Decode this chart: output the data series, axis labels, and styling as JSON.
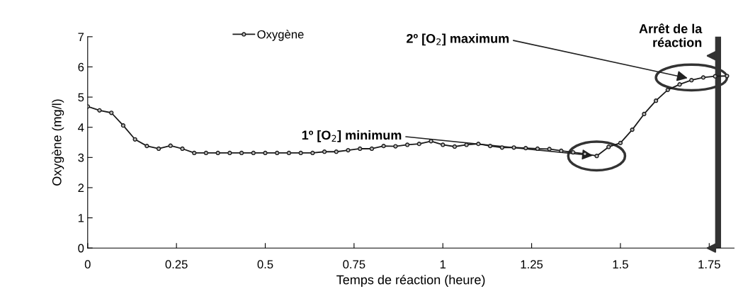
{
  "chart_data": {
    "type": "line",
    "xlabel": "Temps de réaction (heure)",
    "ylabel": "Oxygène (mg/l)",
    "x": [
      0,
      0.0333,
      0.0667,
      0.1,
      0.1333,
      0.1667,
      0.2,
      0.2333,
      0.2667,
      0.3,
      0.3333,
      0.3667,
      0.4,
      0.4333,
      0.4667,
      0.5,
      0.5333,
      0.5667,
      0.6,
      0.6333,
      0.6667,
      0.7,
      0.7333,
      0.7667,
      0.8,
      0.8333,
      0.8667,
      0.9,
      0.9333,
      0.9667,
      1,
      1.0333,
      1.0667,
      1.1,
      1.1333,
      1.1667,
      1.2,
      1.2333,
      1.2667,
      1.3,
      1.3333,
      1.3667,
      1.4,
      1.4333,
      1.4667,
      1.5,
      1.5333,
      1.5667,
      1.6,
      1.6333,
      1.6667,
      1.7,
      1.7333,
      1.7667,
      1.8
    ],
    "series": [
      {
        "name": "Oxygène",
        "color": "#1a1a1a",
        "values": [
          4.69,
          4.56,
          4.48,
          4.06,
          3.6,
          3.38,
          3.29,
          3.39,
          3.29,
          3.15,
          3.15,
          3.15,
          3.15,
          3.15,
          3.15,
          3.15,
          3.15,
          3.15,
          3.15,
          3.15,
          3.19,
          3.19,
          3.24,
          3.29,
          3.29,
          3.38,
          3.37,
          3.42,
          3.45,
          3.54,
          3.42,
          3.36,
          3.42,
          3.45,
          3.38,
          3.33,
          3.33,
          3.31,
          3.29,
          3.28,
          3.22,
          3.17,
          3.12,
          3.05,
          3.35,
          3.48,
          3.92,
          4.44,
          4.88,
          5.24,
          5.42,
          5.56,
          5.65,
          5.69,
          5.7
        ]
      }
    ],
    "xlim": [
      0,
      1.82
    ],
    "ylim": [
      0,
      7
    ],
    "xticks": [
      0,
      0.25,
      0.5,
      0.75,
      1,
      1.25,
      1.5,
      1.75
    ],
    "yticks": [
      0,
      1,
      2,
      3,
      4,
      5,
      6,
      7
    ],
    "grid": false,
    "legend": "top",
    "marker": "circle",
    "line_style": "solid",
    "ref_lines": [
      {
        "axis": "x",
        "value": 1.775,
        "label": "Arrêt de la\nréaction",
        "color": "#333333"
      }
    ],
    "annotations": [
      {
        "text": "1º [O$_{2}$] minimum",
        "x": 1.433,
        "y": 3.05
      },
      {
        "text": "2º [O$_{2}$] maximum",
        "x": 1.7,
        "y": 5.6
      }
    ]
  }
}
